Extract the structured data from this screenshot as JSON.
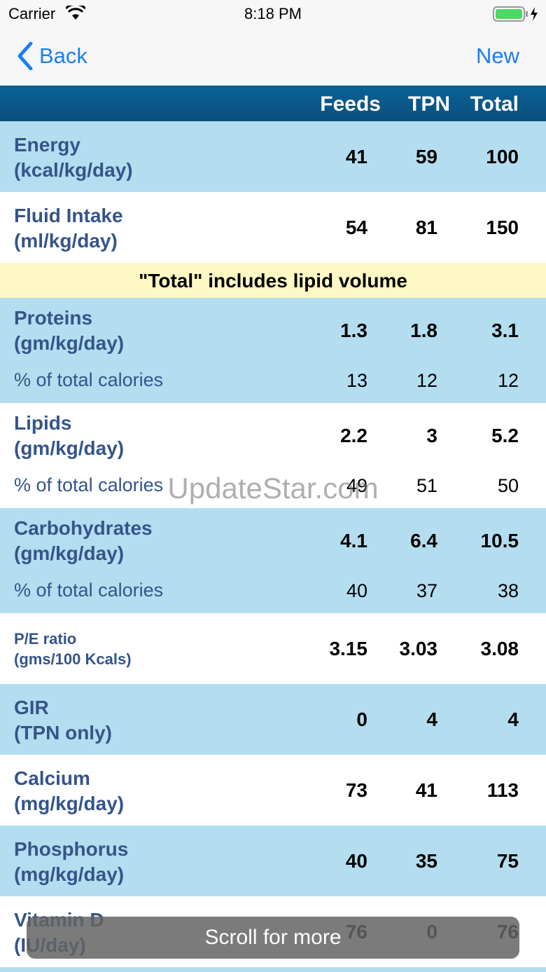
{
  "status_bar": {
    "carrier": "Carrier",
    "time": "8:18 PM"
  },
  "nav": {
    "back": "Back",
    "new": "New"
  },
  "table": {
    "columns": [
      "Feeds",
      "TPN",
      "Total"
    ],
    "rows": [
      {
        "label": [
          "Energy",
          "(kcal/kg/day)"
        ],
        "values": [
          "41",
          "59",
          "100"
        ]
      },
      {
        "label": [
          "Fluid Intake",
          "(ml/kg/day)"
        ],
        "values": [
          "54",
          "81",
          "150"
        ]
      },
      {
        "note": "\"Total\" includes lipid volume"
      },
      {
        "label": [
          "Proteins",
          "(gm/kg/day)"
        ],
        "values": [
          "1.3",
          "1.8",
          "3.1"
        ],
        "sub": {
          "label": "% of total calories",
          "values": [
            "13",
            "12",
            "12"
          ]
        }
      },
      {
        "label": [
          "Lipids",
          "(gm/kg/day)"
        ],
        "values": [
          "2.2",
          "3",
          "5.2"
        ],
        "sub": {
          "label": "% of total calories",
          "values": [
            "49",
            "51",
            "50"
          ]
        }
      },
      {
        "label": [
          "Carbohydrates",
          "(gm/kg/day)"
        ],
        "values": [
          "4.1",
          "6.4",
          "10.5"
        ],
        "sub": {
          "label": "% of total calories",
          "values": [
            "40",
            "37",
            "38"
          ]
        }
      },
      {
        "label": [
          "P/E ratio",
          "(gms/100 Kcals)"
        ],
        "values": [
          "3.15",
          "3.03",
          "3.08"
        ],
        "small": true
      },
      {
        "label": [
          "GIR",
          "(TPN only)"
        ],
        "values": [
          "0",
          "4",
          "4"
        ]
      },
      {
        "label": [
          "Calcium",
          "(mg/kg/day)"
        ],
        "values": [
          "73",
          "41",
          "113"
        ]
      },
      {
        "label": [
          "Phosphorus",
          "(mg/kg/day)"
        ],
        "values": [
          "40",
          "35",
          "75"
        ]
      },
      {
        "label": [
          "Vitamin D",
          "(IU/day)"
        ],
        "values": [
          "76",
          "0",
          "76"
        ]
      }
    ]
  },
  "watermark": "UpdateStar.com",
  "toast": "Scroll for more"
}
